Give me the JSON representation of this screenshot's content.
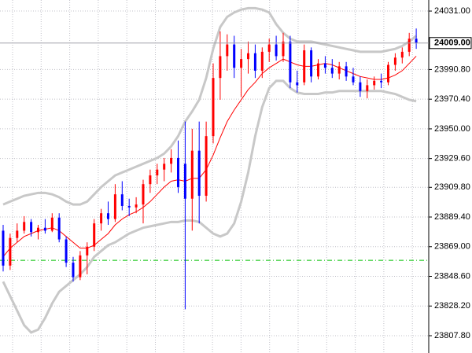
{
  "chart_data": {
    "type": "candlestick",
    "ylim": [
      23795.9,
      24038.6
    ],
    "yticks": [
      {
        "value": 24031,
        "label": "24031.00"
      },
      {
        "value": 23990.8,
        "label": "23990.80"
      },
      {
        "value": 23970.4,
        "label": "23970.40"
      },
      {
        "value": 23950,
        "label": "23950.00"
      },
      {
        "value": 23929.6,
        "label": "23929.60"
      },
      {
        "value": 23909.8,
        "label": "23909.80"
      },
      {
        "value": 23889.4,
        "label": "23889.40"
      },
      {
        "value": 23869,
        "label": "23869.00"
      },
      {
        "value": 23848.6,
        "label": "23848.60"
      },
      {
        "value": 23828.2,
        "label": "23828.20"
      },
      {
        "value": 23807.8,
        "label": "23807.80"
      }
    ],
    "current_price": {
      "value": 24009,
      "label": "24009.00"
    },
    "level_line": {
      "value": 23859.6,
      "color": "#00c000"
    },
    "grid": true,
    "up_color": "#ff0000",
    "down_color": "#0000ff",
    "open": [
      23880,
      23856,
      23875,
      23880,
      23886,
      23879,
      23882,
      23880,
      23889,
      23874,
      23858,
      23848,
      23863,
      23869,
      23885,
      23892,
      23888,
      23905,
      23897,
      23896,
      23898,
      23912,
      23918,
      23922,
      23926,
      23930,
      23926,
      23902,
      23935,
      23904,
      23945,
      23985,
      24000,
      24008,
      23992,
      23998,
      24002,
      23990,
      24003,
      24008,
      24000,
      24010,
      23982,
      23982,
      24004,
      23986,
      23995,
      23992,
      23988,
      23993,
      23986,
      23982,
      23976,
      23980,
      23983,
      23982,
      23994,
      23999,
      24003,
      24012
    ],
    "high": [
      23884,
      23878,
      23885,
      23890,
      23888,
      23884,
      23888,
      23892,
      23892,
      23876,
      23862,
      23866,
      23872,
      23888,
      23895,
      23900,
      23912,
      23914,
      23902,
      23903,
      23915,
      23922,
      23926,
      23930,
      23936,
      23942,
      23955,
      23950,
      23955,
      23955,
      23995,
      24017,
      24015,
      24014,
      24005,
      24010,
      24008,
      24006,
      24012,
      24014,
      24016,
      24014,
      23990,
      24008,
      24006,
      23998,
      24000,
      23998,
      23996,
      23996,
      23992,
      23986,
      23984,
      23986,
      23988,
      23996,
      24002,
      24006,
      24016,
      24019
    ],
    "low": [
      23852,
      23853,
      23872,
      23878,
      23876,
      23874,
      23878,
      23879,
      23872,
      23855,
      23845,
      23846,
      23850,
      23866,
      23880,
      23884,
      23886,
      23894,
      23890,
      23892,
      23885,
      23906,
      23912,
      23914,
      23920,
      23906,
      23826,
      23880,
      23885,
      23900,
      23940,
      23970,
      23990,
      23985,
      23972,
      23988,
      23985,
      23985,
      23996,
      23997,
      23996,
      23978,
      23975,
      23980,
      23982,
      23984,
      23988,
      23985,
      23984,
      23983,
      23980,
      23972,
      23971,
      23977,
      23978,
      23980,
      23990,
      23995,
      24000,
      24005
    ],
    "close": [
      23856,
      23875,
      23880,
      23886,
      23879,
      23882,
      23880,
      23889,
      23874,
      23858,
      23848,
      23863,
      23869,
      23885,
      23892,
      23888,
      23905,
      23897,
      23896,
      23898,
      23912,
      23918,
      23922,
      23926,
      23930,
      23910,
      23902,
      23935,
      23904,
      23945,
      23985,
      24000,
      24008,
      23992,
      23998,
      24002,
      23990,
      24003,
      24008,
      24000,
      24010,
      23982,
      23980,
      24004,
      23986,
      23995,
      23992,
      23988,
      23993,
      23986,
      23982,
      23976,
      23980,
      23983,
      23982,
      23994,
      23999,
      24003,
      24012,
      24009
    ],
    "lines": [
      {
        "color": "#c8c8c8",
        "values": [
          23898,
          23900,
          23902,
          23904,
          23905,
          23906,
          23906,
          23905,
          23903,
          23900,
          23898,
          23898,
          23900,
          23905,
          23910,
          23914,
          23918,
          23920,
          23922,
          23924,
          23926,
          23928,
          23930,
          23933,
          23938,
          23945,
          23955,
          23962,
          23970,
          23985,
          24005,
          24020,
          24027,
          24030,
          24032,
          24033,
          24033,
          24032,
          24030,
          24022,
          24016,
          24012,
          24010,
          24010,
          24010,
          24009,
          24008,
          24007,
          24006,
          24005,
          24004,
          24003,
          24003,
          24003,
          24003,
          24004,
          24005,
          24007,
          24010,
          24014
        ]
      },
      {
        "color": "#c8c8c8",
        "values": [
          23845,
          23835,
          23825,
          23815,
          23810,
          23812,
          23820,
          23830,
          23838,
          23842,
          23846,
          23850,
          23855,
          23862,
          23866,
          23870,
          23872,
          23875,
          23878,
          23880,
          23882,
          23883,
          23884,
          23885,
          23886,
          23886,
          23887,
          23887,
          23886,
          23882,
          23878,
          23876,
          23878,
          23885,
          23900,
          23920,
          23945,
          23965,
          23978,
          23983,
          23983,
          23978,
          23975,
          23974,
          23974,
          23974,
          23975,
          23975,
          23976,
          23976,
          23976,
          23976,
          23976,
          23976,
          23976,
          23975,
          23974,
          23972,
          23970,
          23969
        ]
      },
      {
        "color": "#ff0000",
        "values": [
          23862,
          23868,
          23872,
          23876,
          23878,
          23880,
          23881,
          23882,
          23880,
          23876,
          23872,
          23868,
          23868,
          23870,
          23874,
          23878,
          23884,
          23888,
          23891,
          23893,
          23896,
          23900,
          23905,
          23910,
          23914,
          23915,
          23914,
          23916,
          23916,
          23922,
          23932,
          23944,
          23955,
          23963,
          23970,
          23977,
          23982,
          23988,
          23992,
          23995,
          23998,
          23996,
          23994,
          23993,
          23993,
          23994,
          23995,
          23994,
          23992,
          23990,
          23988,
          23986,
          23985,
          23984,
          23984,
          23985,
          23987,
          23990,
          23995,
          24000
        ]
      }
    ]
  }
}
